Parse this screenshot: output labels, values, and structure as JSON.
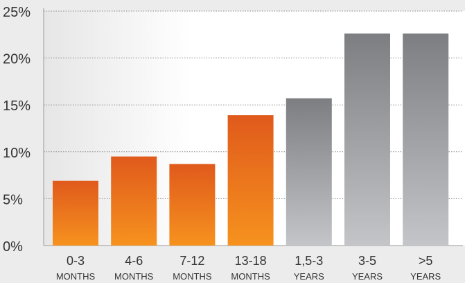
{
  "chart_data": {
    "type": "bar",
    "title": "",
    "xlabel": "",
    "ylabel": "",
    "ylim": [
      0,
      25
    ],
    "yticks": [
      "0%",
      "5%",
      "10%",
      "15%",
      "20%",
      "25%"
    ],
    "grid": true,
    "categories": [
      {
        "line1": "0-3",
        "line2": "MONTHS",
        "group": "months"
      },
      {
        "line1": "4-6",
        "line2": "MONTHS",
        "group": "months"
      },
      {
        "line1": "7-12",
        "line2": "MONTHS",
        "group": "months"
      },
      {
        "line1": "13-18",
        "line2": "MONTHS",
        "group": "months"
      },
      {
        "line1": "1,5-3",
        "line2": "YEARS",
        "group": "years"
      },
      {
        "line1": "3-5",
        "line2": "YEARS",
        "group": "years"
      },
      {
        "line1": ">5",
        "line2": "YEARS",
        "group": "years"
      }
    ],
    "values": [
      6.9,
      9.5,
      8.7,
      13.9,
      15.7,
      22.6,
      22.6
    ],
    "colors": {
      "months_top": "#e05a1c",
      "months_bottom": "#f6921e",
      "years_top": "#7d7e82",
      "years_bottom": "#c4c5c9",
      "axis_text": "#333333",
      "grid": "#8a8a8a"
    }
  }
}
